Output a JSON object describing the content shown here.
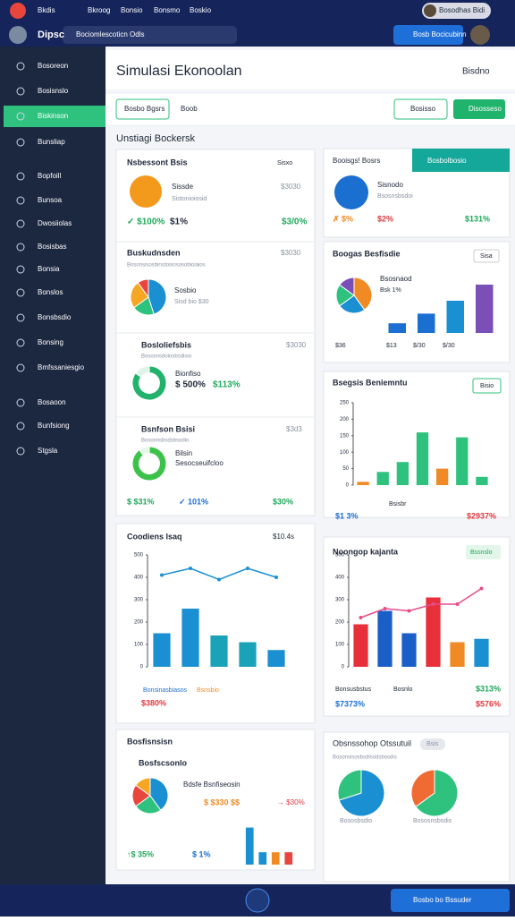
{
  "topbar": {
    "items": [
      "Bkdis",
      "Bkroog",
      "Bonsio",
      "Bonsmo",
      "Boskio"
    ],
    "profile": "Bosodhas Bidi"
  },
  "appbar": {
    "name": "Dipsc",
    "search": "Bociomlescoticn Odls",
    "button": "Bosb Bocicubinn"
  },
  "sidebar": {
    "items": [
      "Bosoreon",
      "Bosisnslo",
      "Biskinson",
      "Bunsliap",
      "Bopfoill",
      "Bunsoa",
      "Dwosiiolas",
      "Bosisbas",
      "Bonsia",
      "Bonslos",
      "Bonsbsdio",
      "Bonsing",
      "Bmfssaniesgio",
      "Bosaoon",
      "Bunfsiong",
      "Stgsla"
    ]
  },
  "header": {
    "title": "Simulasi Ekonoolan",
    "user": "Bisdno"
  },
  "toolbar": {
    "tab": "Bosbo Bgsrs",
    "link": "Boob",
    "button1": "Bosisso",
    "button2": "Disosseso"
  },
  "section": "Unstiagi Bockersk",
  "left": {
    "s1": {
      "title": "Nsbessont Bsis",
      "right": "Sisxo",
      "name": "Sissde",
      "sub": "Sistonioiosid",
      "amount": "$3030",
      "a": "✓ $100%",
      "b": "$1%",
      "c": "$3/0%"
    },
    "s2": {
      "title": "Buskudnsden",
      "amount": "$3030",
      "sub": "Bosonsisosbirsdosiososobioiaios",
      "name": "Sosbio",
      "note": "Sisd bio $30"
    },
    "s3": {
      "title": "Bosloliefsbis",
      "amount": "$3030",
      "sub": "Bososnsdoiosbsdisio",
      "name": "Bionfiso",
      "a": "$ 500%",
      "b": "$113%"
    },
    "s4": {
      "title": "Bsnfson Bsisi",
      "amount": "$3d3",
      "sub": "Bososnsbsdsbsodio",
      "name": "Bilsin",
      "note": "Sesocseuifcloo",
      "a": "$ $31%",
      "b": "✓ 101%",
      "c": "$30%"
    },
    "trend": {
      "title": "Coodiens Isaq",
      "amount": "$10.4s",
      "legend1": "Bonsinasbiasos",
      "legend2": "Bsnsbio",
      "total": "$380%"
    },
    "mix": {
      "title": "Bosfisnsisn",
      "sub": "Bosfscsonlo",
      "name": "Bdsfe Bsnfiseosin",
      "amount": "$ $330 $$",
      "arrow": "→ $30%",
      "a": "↑$ 35%",
      "b": "$ 1%"
    }
  },
  "right": {
    "a": {
      "tab1": "Booisgs! Bosrs",
      "tab2": "Bosbolbosio",
      "name": "Sisnodo",
      "sub": "Bsosnsbsdoi",
      "x": "✗ $%",
      "y": "$2%",
      "z": "$131%"
    },
    "b": {
      "title": "Boogas Besfisdie",
      "button": "Sisa",
      "name": "Bsosnaod",
      "note": "Bsk 1%",
      "l1": "$36",
      "l2": "$13",
      "l3": "$/30",
      "l4": "$/30"
    },
    "c": {
      "title": "Bsegsis Beniemntu",
      "button": "Bisio",
      "a": "$1 3%",
      "b": "Bsisbr",
      "c": "$2937%"
    },
    "d": {
      "title": "Noongop kajanta",
      "button": "Bssnslo",
      "l1": "Bonsusbstus",
      "l2": "Bosnlo",
      "a": "$313%",
      "b": "$7373%",
      "c": "$576%"
    },
    "e": {
      "title": "Obsnssohop Otssutuil",
      "pill": "Bsis",
      "sub": "Bosonsisosbsdisodsbosdis",
      "cap1": "Bososbsdio",
      "cap2": "Bososnsbsdis"
    }
  },
  "bottombar": {
    "button": "Bosbo bo Bssuder"
  },
  "charts": [
    {
      "type": "pie",
      "values": [
        45,
        20,
        25,
        10
      ],
      "colors": [
        "#1a8fd1",
        "#2ec27e",
        "#f5a623",
        "#e8453c"
      ]
    },
    {
      "type": "donut",
      "values": [
        85,
        15
      ],
      "colors": [
        "#21b36b",
        "#dff3e8"
      ]
    },
    {
      "type": "donut",
      "values": [
        90,
        10
      ],
      "colors": [
        "#3cc24a",
        "#e6f6e8"
      ]
    },
    {
      "type": "bar",
      "ylim": [
        0,
        500
      ],
      "yticks": [
        0,
        100,
        200,
        300,
        400,
        500
      ],
      "values": [
        150,
        260,
        140,
        110,
        75
      ],
      "colors": [
        "#1a8fd1",
        "#1a8fd1",
        "#1aa3b8",
        "#1aa3b8",
        "#1a8fd1"
      ],
      "line": {
        "values": [
          410,
          440,
          390,
          440,
          400
        ],
        "color": "#1a8fd1"
      }
    },
    {
      "type": "pie",
      "values": [
        40,
        25,
        20,
        15
      ],
      "colors": [
        "#1a8fd1",
        "#2ec27e",
        "#e8453c",
        "#f5a623"
      ]
    },
    {
      "type": "bar",
      "ylim": [
        0,
        50
      ],
      "values": [
        45,
        15,
        15,
        15
      ],
      "colors": [
        "#1a8fd1",
        "#1a8fd1",
        "#f08a24",
        "#e8453c"
      ]
    },
    {
      "type": "pie",
      "values": [
        40,
        25,
        20,
        15
      ],
      "colors": [
        "#f08a24",
        "#1a8fd1",
        "#2ec27e",
        "#7b4fb8"
      ]
    },
    {
      "type": "bar",
      "ylim": [
        0,
        100
      ],
      "values": [
        15,
        30,
        50,
        75
      ],
      "colors": [
        "#1a6fd1",
        "#1a6fd1",
        "#1a8fd1",
        "#7b4fb8"
      ]
    },
    {
      "type": "bar",
      "ylim": [
        0,
        250
      ],
      "yticks": [
        0,
        50,
        100,
        150,
        200,
        250
      ],
      "values": [
        10,
        40,
        70,
        160,
        50,
        145,
        25
      ],
      "colors": [
        "#f08a24",
        "#2ec27e",
        "#2ec27e",
        "#2ec27e",
        "#f08a24",
        "#2ec27e",
        "#2ec27e"
      ]
    },
    {
      "type": "bar",
      "ylim": [
        0,
        500
      ],
      "yticks": [
        0,
        100,
        200,
        300,
        400,
        500
      ],
      "values": [
        190,
        250,
        150,
        310,
        110,
        125
      ],
      "colors": [
        "#e8303a",
        "#1a5fc8",
        "#1a5fc8",
        "#e8303a",
        "#f08a24",
        "#1a8fd1"
      ],
      "line": {
        "values": [
          220,
          260,
          250,
          280,
          280,
          350
        ],
        "color": "#e84a8a"
      }
    },
    {
      "type": "pie",
      "values": [
        70,
        30
      ],
      "colors": [
        "#1a8fd1",
        "#2ec27e"
      ]
    },
    {
      "type": "pie",
      "values": [
        65,
        35
      ],
      "colors": [
        "#2ec27e",
        "#f06a34"
      ]
    }
  ]
}
